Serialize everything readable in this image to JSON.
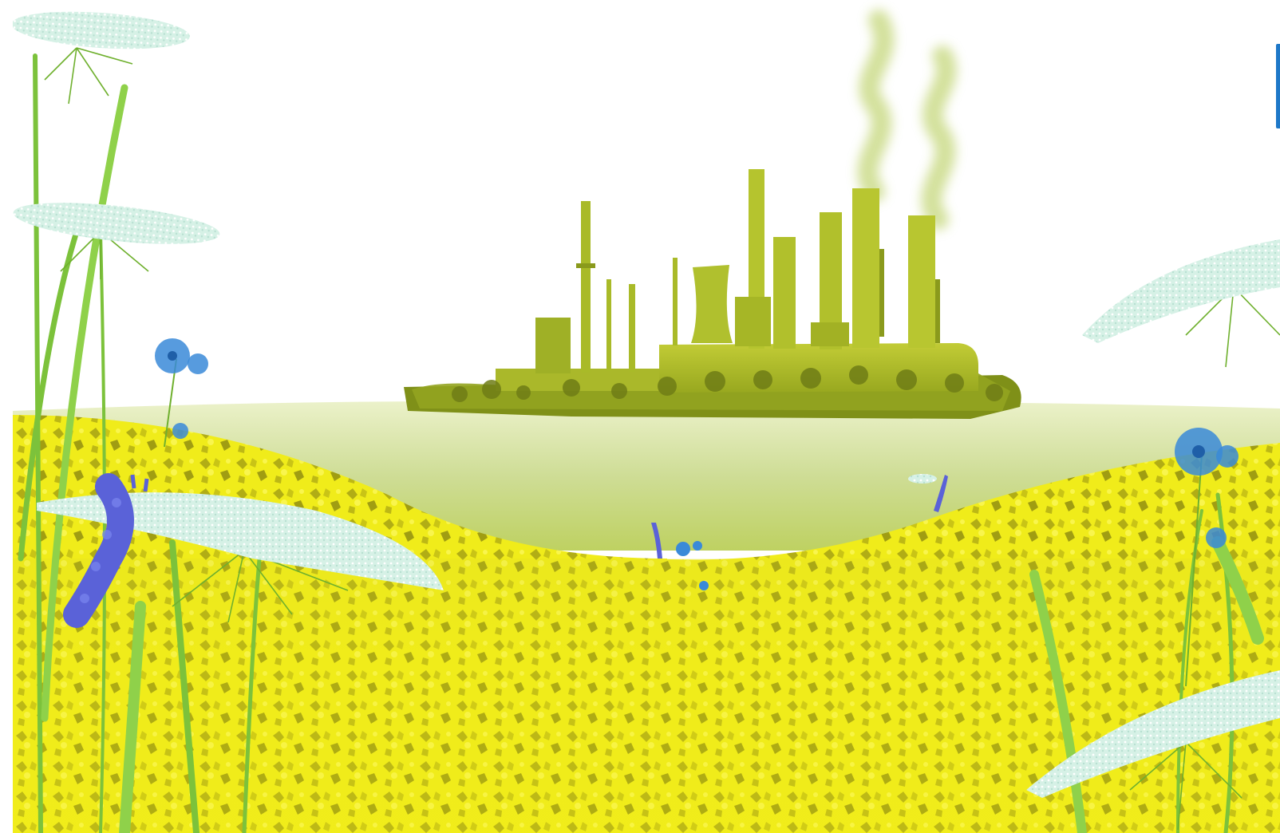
{
  "scene": {
    "subject": "industrial-plant-over-rapeseed-field",
    "palette": {
      "sky": "#ffffff",
      "mist": "#c9d98a",
      "field_yellow": "#f2ef1a",
      "field_shadow": "#8c8a10",
      "plant_green": "#b3bf2a",
      "plant_dark": "#6f7d16",
      "smoke": "#c5d77a",
      "umbel_white": "#d9f2e8",
      "stem_green": "#7cc23b",
      "cornflower_blue": "#3a8ad8",
      "lavender_purple": "#5a62d8",
      "edge_accent": "#1e78c8"
    },
    "elements": {
      "factory": "factory-icon",
      "smoke": "smoke-icon",
      "umbel_flower": "queen-annes-lace-icon",
      "cornflower": "cornflower-icon",
      "lavender": "lavender-icon",
      "grass": "grass-blade-icon"
    }
  }
}
